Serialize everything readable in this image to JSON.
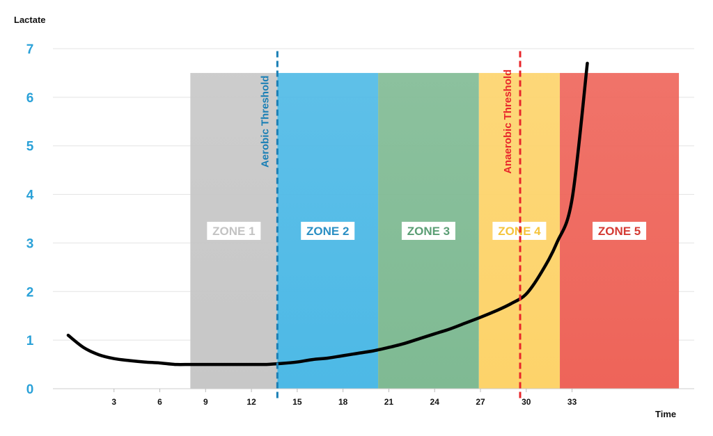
{
  "chart_data": {
    "type": "line",
    "xlabel": "Time",
    "ylabel": "Lactate",
    "xlim": [
      -1,
      41
    ],
    "ylim": [
      0,
      7
    ],
    "x_ticks": [
      "3",
      "6",
      "9",
      "12",
      "15",
      "18",
      "21",
      "24",
      "27",
      "30",
      "33"
    ],
    "y_ticks": [
      "0",
      "1",
      "2",
      "3",
      "4",
      "5",
      "6",
      "7"
    ],
    "grid": "horizontal",
    "series": [
      {
        "values_x": [
          0,
          1,
          2,
          3,
          4,
          5,
          6,
          7,
          8,
          9,
          10,
          11,
          12,
          13,
          14,
          15,
          16,
          17,
          18,
          19,
          20,
          21,
          22,
          23,
          24,
          25,
          26,
          27,
          28,
          29,
          30,
          31,
          32,
          33,
          34
        ],
        "values_y": [
          1.1,
          0.85,
          0.7,
          0.62,
          0.58,
          0.55,
          0.53,
          0.5,
          0.5,
          0.5,
          0.5,
          0.5,
          0.5,
          0.5,
          0.52,
          0.55,
          0.6,
          0.63,
          0.68,
          0.73,
          0.78,
          0.85,
          0.93,
          1.03,
          1.13,
          1.23,
          1.35,
          1.47,
          1.6,
          1.75,
          1.95,
          2.4,
          3.0,
          3.9,
          6.7
        ],
        "color": "#000000"
      }
    ],
    "zones": [
      {
        "label": "ZONE 1",
        "from": 8,
        "to": 13.7,
        "color": "#c7c7c7",
        "text_color": "#c3c3c3"
      },
      {
        "label": "ZONE 2",
        "from": 13.7,
        "to": 20.3,
        "color": "#4db9e6",
        "text_color": "#2a8fc4"
      },
      {
        "label": "ZONE 3",
        "from": 20.3,
        "to": 26.9,
        "color": "#7fba93",
        "text_color": "#5a9e74"
      },
      {
        "label": "ZONE 4",
        "from": 26.9,
        "to": 32.2,
        "color": "#fdd36a",
        "text_color": "#f5c43b"
      },
      {
        "label": "ZONE 5",
        "from": 32.2,
        "to": 40,
        "color": "#ee6459",
        "text_color": "#d43a33"
      }
    ],
    "zone_top": 6.5,
    "thresholds": [
      {
        "label": "Aerobic Threshold",
        "x": 13.7,
        "color": "#1a7fb5"
      },
      {
        "label": "Anaerobic Threshold",
        "x": 29.6,
        "color": "#e8262b"
      }
    ],
    "ytick_color": "#2aa1d8"
  }
}
